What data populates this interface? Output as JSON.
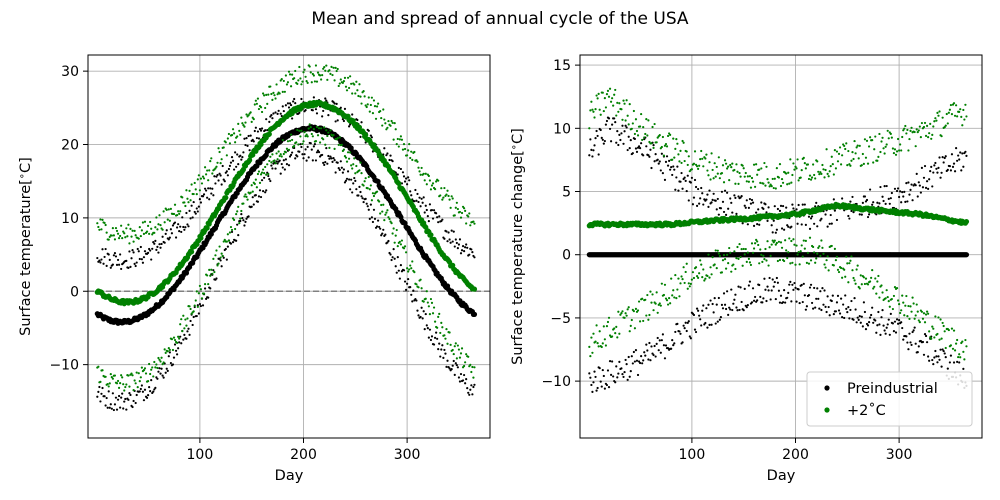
{
  "figure": {
    "title": "Mean and spread of annual cycle of the USA"
  },
  "colors": {
    "preindustrial": "#000000",
    "warming": "#008000",
    "zero_line": "#808080",
    "grid": "#b0b0b0"
  },
  "chart_data": [
    {
      "type": "scatter",
      "title": "",
      "xlabel": "Day",
      "ylabel": "Surface temperature[$^{\\circ}$C]",
      "xlim": [
        -8,
        380
      ],
      "ylim": [
        -20,
        32.2
      ],
      "xticks": [
        100,
        200,
        300
      ],
      "yticks": [
        -10,
        0,
        10,
        20,
        30
      ],
      "ytick_labels": [
        "−10",
        "0",
        "10",
        "20",
        "30"
      ],
      "grid": true,
      "hline_dashed_at": 0,
      "series": [
        {
          "name": "Preindustrial",
          "role": "mean",
          "color": "black",
          "x_days": [
            1,
            365
          ],
          "model": "cosine",
          "annual_mean": 9.0,
          "amplitude": 13.2,
          "peak_day": 207
        },
        {
          "name": "Preindustrial",
          "role": "upper-spread",
          "color": "black",
          "model": "cosine",
          "annual_mean": 14.8,
          "amplitude": 10.5,
          "peak_day": 207
        },
        {
          "name": "Preindustrial",
          "role": "lower-spread",
          "color": "black",
          "model": "cosine",
          "annual_mean": 2.0,
          "amplitude": 17.0,
          "peak_day": 205
        },
        {
          "name": "+2˚C",
          "role": "mean",
          "color": "green",
          "model": "cosine",
          "annual_mean": 12.0,
          "amplitude": 13.5,
          "peak_day": 212
        },
        {
          "name": "+2˚C",
          "role": "upper-spread",
          "color": "green",
          "model": "cosine",
          "annual_mean": 18.8,
          "amplitude": 11.0,
          "peak_day": 212
        },
        {
          "name": "+2˚C",
          "role": "lower-spread",
          "color": "green",
          "model": "cosine",
          "annual_mean": 4.5,
          "amplitude": 17.0,
          "peak_day": 208
        }
      ]
    },
    {
      "type": "scatter",
      "title": "",
      "xlabel": "Day",
      "ylabel": "Surface temperature change[$^{\\circ}$C]",
      "xlim": [
        -8,
        380
      ],
      "ylim": [
        -14.5,
        15.8
      ],
      "xticks": [
        100,
        200,
        300
      ],
      "yticks": [
        -10,
        -5,
        0,
        5,
        10,
        15
      ],
      "ytick_labels": [
        "−10",
        "−5",
        "0",
        "5",
        "10",
        "15"
      ],
      "grid": true,
      "legend": {
        "placement": "lower-right",
        "entries": [
          {
            "label": "Preindustrial",
            "color": "black"
          },
          {
            "label": "+2˚C",
            "color": "green"
          }
        ]
      },
      "series": [
        {
          "name": "Preindustrial",
          "role": "mean",
          "color": "black",
          "constant": 0
        },
        {
          "name": "Preindustrial",
          "role": "upper-spread",
          "color": "black",
          "anchors_day": [
            1,
            20,
            60,
            100,
            140,
            180,
            220,
            260,
            300,
            330,
            365
          ],
          "anchors_value": [
            8.0,
            10.0,
            8.0,
            5.0,
            3.8,
            2.8,
            3.0,
            3.8,
            4.8,
            6.2,
            7.8
          ]
        },
        {
          "name": "Preindustrial",
          "role": "lower-spread",
          "color": "black",
          "anchors_day": [
            1,
            20,
            60,
            100,
            140,
            180,
            220,
            260,
            300,
            330,
            365
          ],
          "anchors_value": [
            -10.0,
            -9.5,
            -8.0,
            -5.5,
            -3.5,
            -2.8,
            -3.5,
            -4.5,
            -6.0,
            -7.5,
            -10.0
          ]
        },
        {
          "name": "+2˚C",
          "role": "mean",
          "color": "green",
          "anchors_day": [
            1,
            40,
            80,
            120,
            160,
            200,
            240,
            280,
            320,
            365
          ],
          "anchors_value": [
            2.4,
            2.4,
            2.4,
            2.7,
            2.9,
            3.2,
            3.9,
            3.5,
            3.2,
            2.5
          ]
        },
        {
          "name": "+2˚C",
          "role": "upper-spread",
          "color": "green",
          "anchors_day": [
            1,
            20,
            60,
            100,
            140,
            180,
            220,
            260,
            300,
            330,
            365
          ],
          "anchors_value": [
            11.0,
            12.5,
            9.5,
            7.5,
            6.5,
            6.2,
            7.0,
            8.0,
            9.0,
            10.0,
            11.5
          ]
        },
        {
          "name": "+2˚C",
          "role": "lower-spread",
          "color": "green",
          "anchors_day": [
            1,
            20,
            60,
            100,
            140,
            180,
            220,
            260,
            300,
            330,
            365
          ],
          "anchors_value": [
            -7.0,
            -6.0,
            -4.0,
            -1.5,
            -0.2,
            0.3,
            0.3,
            -1.5,
            -3.5,
            -5.5,
            -7.5
          ]
        }
      ]
    }
  ]
}
